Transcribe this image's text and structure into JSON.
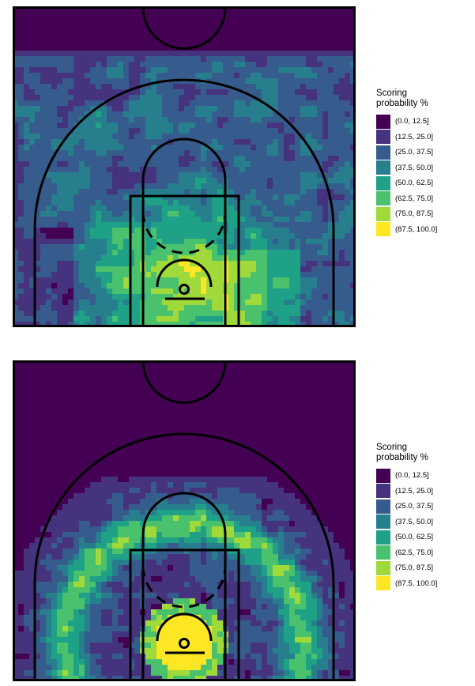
{
  "chart_data": [
    {
      "type": "heatmap",
      "title": "",
      "xlabel": "",
      "ylabel": "",
      "legend": {
        "title": "Scoring\nprobability %",
        "position": "right",
        "bins": [
          {
            "label": "(0.0, 12.5]",
            "color": "#440154"
          },
          {
            "label": "(12.5, 25.0]",
            "color": "#46337E"
          },
          {
            "label": "(25.0, 37.5]",
            "color": "#365C8D"
          },
          {
            "label": "(37.5, 50.0]",
            "color": "#277F8E"
          },
          {
            "label": "(50.0, 62.5]",
            "color": "#1FA187"
          },
          {
            "label": "(62.5, 75.0]",
            "color": "#4AC16D"
          },
          {
            "label": "(75.0, 87.5]",
            "color": "#9FDA3A"
          },
          {
            "label": "(87.5, 100.0]",
            "color": "#FDE725"
          }
        ]
      },
      "pattern": "model-1"
    },
    {
      "type": "heatmap",
      "title": "",
      "xlabel": "",
      "ylabel": "",
      "legend": {
        "title": "Scoring\nprobability %",
        "position": "right",
        "bins": [
          {
            "label": "(0.0, 12.5]",
            "color": "#440154"
          },
          {
            "label": "(12.5, 25.0]",
            "color": "#46337E"
          },
          {
            "label": "(25.0, 37.5]",
            "color": "#365C8D"
          },
          {
            "label": "(37.5, 50.0]",
            "color": "#277F8E"
          },
          {
            "label": "(50.0, 62.5]",
            "color": "#1FA187"
          },
          {
            "label": "(62.5, 75.0]",
            "color": "#4AC16D"
          },
          {
            "label": "(75.0, 87.5]",
            "color": "#9FDA3A"
          },
          {
            "label": "(87.5, 100.0]",
            "color": "#FDE725"
          }
        ]
      },
      "pattern": "model-2"
    }
  ]
}
